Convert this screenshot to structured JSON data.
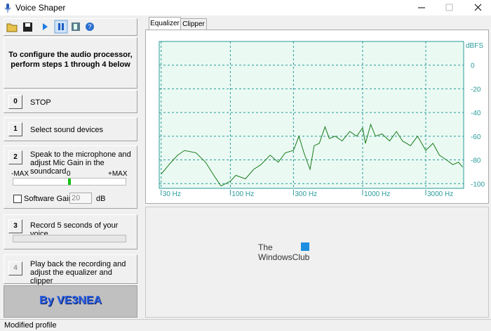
{
  "window": {
    "title": "Voice Shaper",
    "status": "Modified profile"
  },
  "instructions": [
    "To configure the audio processor,",
    "perform steps 1 through 4 below"
  ],
  "steps": [
    {
      "button": "0",
      "label": "STOP"
    },
    {
      "button": "1",
      "label": "Select sound devices"
    },
    {
      "button": "2",
      "label": "Speak to the microphone and adjust Mic Gain in the soundcard"
    },
    {
      "button": "3",
      "label": "Record 5 seconds of your voice"
    },
    {
      "button": "4",
      "label": "Play back the recording and adjust the equalizer and clipper"
    }
  ],
  "meter": {
    "left": "-MAX",
    "center": "0",
    "right": "+MAX"
  },
  "software_gain": {
    "label": "Software Gain",
    "value": 20,
    "unit": "dB"
  },
  "credit": "By VE3NEA",
  "tabs": [
    "Equalizer",
    "Clipper"
  ],
  "watermark": {
    "line1": "The",
    "line2": "WindowsClub"
  },
  "chart_data": {
    "type": "line",
    "y_axis_label": "dBFS",
    "color": "#1a7a1a",
    "x": [
      30,
      35,
      40,
      45,
      55,
      65,
      75,
      85,
      100,
      110,
      130,
      150,
      170,
      200,
      230,
      260,
      300,
      330,
      360,
      400,
      430,
      470,
      520,
      560,
      620,
      700,
      800,
      900,
      1000,
      1050,
      1150,
      1250,
      1400,
      1600,
      1800,
      2000,
      2300,
      2600,
      3000,
      3400,
      3800,
      4300,
      4800,
      5300,
      5700
    ],
    "values": [
      -92,
      -83,
      -76,
      -72,
      -74,
      -82,
      -93,
      -102,
      -98,
      -93,
      -96,
      -88,
      -84,
      -76,
      -82,
      -74,
      -72,
      -60,
      -74,
      -88,
      -68,
      -66,
      -52,
      -62,
      -60,
      -64,
      -56,
      -60,
      -53,
      -66,
      -50,
      -60,
      -58,
      -64,
      -56,
      -64,
      -68,
      -60,
      -72,
      -66,
      -76,
      -80,
      -84,
      -82,
      -86
    ],
    "xlim": [
      29,
      5800
    ],
    "xscale": "log",
    "ylim": [
      -104,
      20
    ],
    "yticks": [
      0,
      -20,
      -40,
      -60,
      -80,
      -100
    ],
    "xticks": [
      {
        "value": 30,
        "label": "30 Hz"
      },
      {
        "value": 100,
        "label": "100 Hz"
      },
      {
        "value": 300,
        "label": "300 Hz"
      },
      {
        "value": 1000,
        "label": "1000 Hz"
      },
      {
        "value": 3000,
        "label": "3000 Hz"
      }
    ],
    "grid": true
  }
}
